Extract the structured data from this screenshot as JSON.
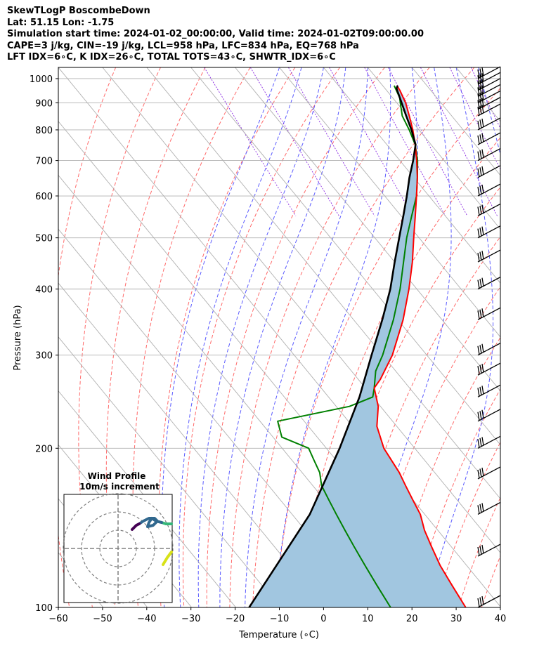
{
  "header": {
    "line1": "SkewTLogP BoscombeDown",
    "line2": "Lat: 51.15   Lon: -1.75",
    "line3": "Simulation start time: 2024-01-02_00:00:00, Valid time: 2024-01-02T09:00:00.00",
    "line4": "CAPE=3 j/kg, CIN=-19 j/kg, LCL=958 hPa, LFC=834 hPa, EQ=768 hPa",
    "line5": "LFT IDX=6∘C, K IDX=26∘C, TOTAL TOTS=43∘C, SHWTR_IDX=6∘C"
  },
  "chart_data": {
    "type": "line",
    "subtype": "skew-T log-P",
    "xlabel": "Temperature (∘C)",
    "ylabel": "Pressure (hPa)",
    "xlim": [
      -60,
      40
    ],
    "ylim": [
      1050,
      100
    ],
    "y_scale": "log",
    "x_ticks": [
      "−60",
      "−50",
      "−40",
      "−30",
      "−20",
      "−10",
      "0",
      "10",
      "20",
      "30",
      "40"
    ],
    "y_ticks": [
      "100",
      "200",
      "300",
      "400",
      "500",
      "600",
      "700",
      "800",
      "900",
      "1000"
    ],
    "y_tick_values": [
      100,
      200,
      300,
      400,
      500,
      600,
      700,
      800,
      900,
      1000
    ],
    "grid": true,
    "series": [
      {
        "color": "#ff0000",
        "p": [
          970,
          950,
          920,
          900,
          850,
          800,
          750,
          700,
          650,
          600,
          550,
          500,
          450,
          400,
          350,
          300,
          270,
          260,
          240,
          220,
          200,
          180,
          170,
          160,
          150,
          140,
          130,
          120,
          110,
          100
        ],
        "t": [
          13.2,
          13.0,
          12.4,
          12.0,
          10.4,
          8.6,
          6.4,
          3.8,
          0.8,
          -2.8,
          -6.8,
          -11.2,
          -16.0,
          -21.8,
          -28.8,
          -37.8,
          -45.0,
          -48.0,
          -50.5,
          -54.5,
          -57.0,
          -58.0,
          -59.0,
          -60.0,
          -61.0,
          -63.0,
          -64.5,
          -66.0,
          -67.0,
          -68.0
        ]
      },
      {
        "color": "#008000",
        "p": [
          970,
          950,
          920,
          900,
          850,
          800,
          750,
          700,
          650,
          600,
          550,
          500,
          450,
          400,
          350,
          300,
          280,
          260,
          250,
          240,
          225,
          210,
          200,
          190,
          180,
          170,
          160,
          150,
          140,
          130,
          120,
          110,
          100
        ],
        "t": [
          12.6,
          12.2,
          11.6,
          10.8,
          8.8,
          7.8,
          6.4,
          4.0,
          0.8,
          -2.8,
          -7.6,
          -12.8,
          -18.0,
          -23.8,
          -31.0,
          -40.0,
          -44.5,
          -48.0,
          -50.0,
          -57.0,
          -76.0,
          -78.0,
          -74.0,
          -75.0,
          -76.0,
          -78.0,
          -79.0,
          -80.0,
          -81.0,
          -82.0,
          -83.0,
          -84.0,
          -85.0
        ]
      },
      {
        "color": "#000000",
        "p": [
          970,
          958,
          900,
          850,
          800,
          750,
          700,
          650,
          600,
          550,
          500,
          450,
          400,
          350,
          300,
          250,
          200,
          150,
          100
        ],
        "t": [
          13.4,
          12.6,
          11.1,
          9.7,
          8.3,
          6.5,
          3.0,
          -1.0,
          -5.0,
          -9.5,
          -14.5,
          -20.0,
          -26.0,
          -33.5,
          -42.5,
          -53.0,
          -67.0,
          -86.0,
          -117.0
        ]
      }
    ],
    "dry_adiabats_theta_K": [
      223,
      233,
      243,
      253,
      263,
      273,
      283,
      293,
      303,
      313,
      323,
      333,
      343,
      353,
      363,
      373,
      383,
      393,
      403,
      413,
      423,
      433
    ],
    "moist_adiabats_start_C": [
      -10,
      -5,
      0,
      5,
      10,
      15,
      20,
      25,
      30,
      35
    ],
    "mixing_ratio_lines": [
      0.4,
      1,
      2,
      4,
      7,
      10,
      16,
      24,
      32
    ],
    "wind_barbs_p": [
      1000,
      975,
      950,
      925,
      900,
      875,
      850,
      800,
      750,
      700,
      650,
      600,
      550,
      500,
      450,
      400,
      350,
      300,
      275,
      250,
      225,
      200,
      175,
      150,
      125,
      100
    ],
    "hodograph": {
      "title": "Wind Profile",
      "subtitle": "10m/s increment",
      "colormap": [
        "#d8e219",
        "#35b779",
        "#31688e",
        "#440154"
      ]
    }
  }
}
